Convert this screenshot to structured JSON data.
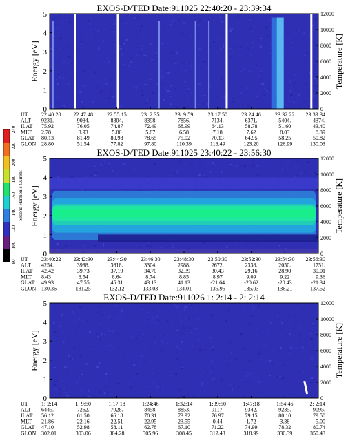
{
  "chart_data": [
    {
      "type": "heatmap",
      "title": "EXOS-D/TED   Date:911025  22:40:20 - 23:39:34",
      "ylabel": "Energy [eV]",
      "y2label": "Temperature [K]",
      "ylim": [
        0,
        5
      ],
      "yticks": [
        "0",
        "1",
        "2",
        "3",
        "4",
        "5"
      ],
      "y2lim": [
        0,
        12000
      ],
      "y2ticks": [
        "0",
        "2000",
        "4000",
        "6000",
        "8000",
        "10000",
        "12000"
      ],
      "background": "#2f2fb4",
      "row_labels": [
        "UT",
        "ALT",
        "ILAT",
        "MLT",
        "GLAT",
        "GLON"
      ],
      "columns": [
        [
          "22:40:20",
          "9231.",
          "75.92",
          "2.78",
          "80.13",
          "28.80"
        ],
        [
          "22:47:48",
          "9084.",
          "76.05",
          "3.93",
          "81.49",
          "51.54"
        ],
        [
          "22:55:15",
          "8804.",
          "74.87",
          "5.00",
          "80.98",
          "77.82"
        ],
        [
          "23: 2:35",
          "8398.",
          "72.49",
          "5.87",
          "78.65",
          "97.80"
        ],
        [
          "23: 9:59",
          "7856.",
          "68.99",
          "6.58",
          "75.02",
          "110.39"
        ],
        [
          "23:17:50",
          "7134.",
          "64.13",
          "7.18",
          "70.13",
          "118.49"
        ],
        [
          "23:24:46",
          "6371.",
          "58.78",
          "7.62",
          "64.95",
          "123.20"
        ],
        [
          "23:32:22",
          "5404.",
          "51.60",
          "8.03",
          "58.25",
          "126.99"
        ],
        [
          "23:39:34",
          "4374.",
          "43.40",
          "8.39",
          "50.82",
          "130.03"
        ]
      ],
      "features": {
        "white_gaps": [
          0.09,
          0.25,
          0.655,
          0.97
        ],
        "light_streaks": [
          0.01,
          0.405,
          0.54,
          0.59
        ],
        "bright_band_x": [
          0.825,
          0.87
        ],
        "bright_band_energy": [
          0,
          4.8
        ]
      }
    },
    {
      "type": "heatmap",
      "title": "EXOS-D/TED   Date:911025  23:40:22 - 23:56:30",
      "ylabel": "Energy [eV]",
      "y2label": "Temperature [K]",
      "ylim": [
        0,
        5
      ],
      "yticks": [
        "0",
        "1",
        "2",
        "3",
        "4",
        "5"
      ],
      "y2lim": [
        0,
        12000
      ],
      "y2ticks": [
        "0",
        "2000",
        "4000",
        "6000",
        "8000",
        "10000",
        "12000"
      ],
      "background": "#2f2fb4",
      "row_labels": [
        "UT",
        "ALT",
        "ILAT",
        "MLT",
        "GLAT",
        "GLON"
      ],
      "columns": [
        [
          "23:40:22",
          "4254.",
          "42.42",
          "8.43",
          "49.93",
          "130.36"
        ],
        [
          "23:42:30",
          "3938.",
          "39.73",
          "8.54",
          "47.55",
          "131.25"
        ],
        [
          "23:44:30",
          "3618.",
          "37.19",
          "8.64",
          "45.31",
          "132.12"
        ],
        [
          "23:46:30",
          "3304.",
          "34.70",
          "8.74",
          "43.13",
          "133.03"
        ],
        [
          "23:48:30",
          "2988.",
          "32.39",
          "8.85",
          "41.13",
          "134.01"
        ],
        [
          "23:50:30",
          "2672.",
          "30.43",
          "8.97",
          "-21.64",
          "135.95"
        ],
        [
          "23:52:30",
          "2338.",
          "29.16",
          "9.09",
          "-20.62",
          "135.03"
        ],
        [
          "23:54:30",
          "2050.",
          "28.90",
          "9.22",
          "-20.43",
          "136.21"
        ],
        [
          "23:56:30",
          "1751.",
          "30.01",
          "9.36",
          "-21.34",
          "137.52"
        ]
      ],
      "features": {
        "band_layers_energy": [
          {
            "lo": 0.7,
            "hi": 3.3,
            "color": "#2f7fd8"
          },
          {
            "lo": 1.1,
            "hi": 2.9,
            "color": "#24a8de"
          },
          {
            "lo": 1.5,
            "hi": 2.6,
            "color": "#22d0b0"
          },
          {
            "lo": 1.7,
            "hi": 2.5,
            "color": "#1fe8a0"
          },
          {
            "lo": 1.9,
            "hi": 2.35,
            "color": "#18f088"
          }
        ]
      }
    },
    {
      "type": "heatmap",
      "title": "EXOS-D/TED   Date:911026  1: 2:14 - 2: 2:14",
      "ylabel": "Energy [eV]",
      "y2label": "Temperature [K]",
      "ylim": [
        0,
        5
      ],
      "yticks": [
        "0",
        "1",
        "2",
        "3",
        "4",
        "5"
      ],
      "y2lim": [
        0,
        12000
      ],
      "y2ticks": [
        "0",
        "2000",
        "4000",
        "6000",
        "8000",
        "10000",
        "12000"
      ],
      "background": "#2f2fb4",
      "row_labels": [
        "UT",
        "ALT",
        "ILAT",
        "MLT",
        "GLAT",
        "GLON"
      ],
      "columns": [
        [
          "1: 2:14",
          "6445.",
          "56.12",
          "21.86",
          "47.10",
          "302.01"
        ],
        [
          "1: 9:50",
          "7262.",
          "61.50",
          "22.16",
          "52.98",
          "303.06"
        ],
        [
          "1:17:18",
          "7928.",
          "66.18",
          "22.51",
          "58.11",
          "304.28"
        ],
        [
          "1:24:46",
          "8458.",
          "70.31",
          "22.95",
          "62.78",
          "305.96"
        ],
        [
          "1:32:14",
          "8853.",
          "73.92",
          "23.55",
          "67.10",
          "308.45"
        ],
        [
          "1:39:50",
          "9117.",
          "76.97",
          "0.44",
          "71.22",
          "312.43"
        ],
        [
          "1:47:18",
          "9342.",
          "79.15",
          "1.72",
          "74.99",
          "318.99"
        ],
        [
          "1:54:46",
          "9235.",
          "80.10",
          "3.38",
          "78.32",
          "330.39"
        ],
        [
          "2: 2:14",
          "9095.",
          "79.50",
          "5.00",
          "80.74",
          "350.43"
        ]
      ],
      "features": {
        "white_blip_x": 0.95,
        "white_blip_energy": [
          0.2,
          0.9
        ]
      }
    }
  ],
  "colorbar": {
    "label": "Second Harmonic Current",
    "ticks": [
      "80",
      "100",
      "120",
      "140",
      "160",
      "180",
      "200",
      "220",
      "240"
    ],
    "colors": [
      "#000000",
      "#6a1f80",
      "#3030c0",
      "#2f80e0",
      "#1fd0d0",
      "#20e070",
      "#c8e030",
      "#f0c020",
      "#f07020",
      "#e02020"
    ]
  }
}
